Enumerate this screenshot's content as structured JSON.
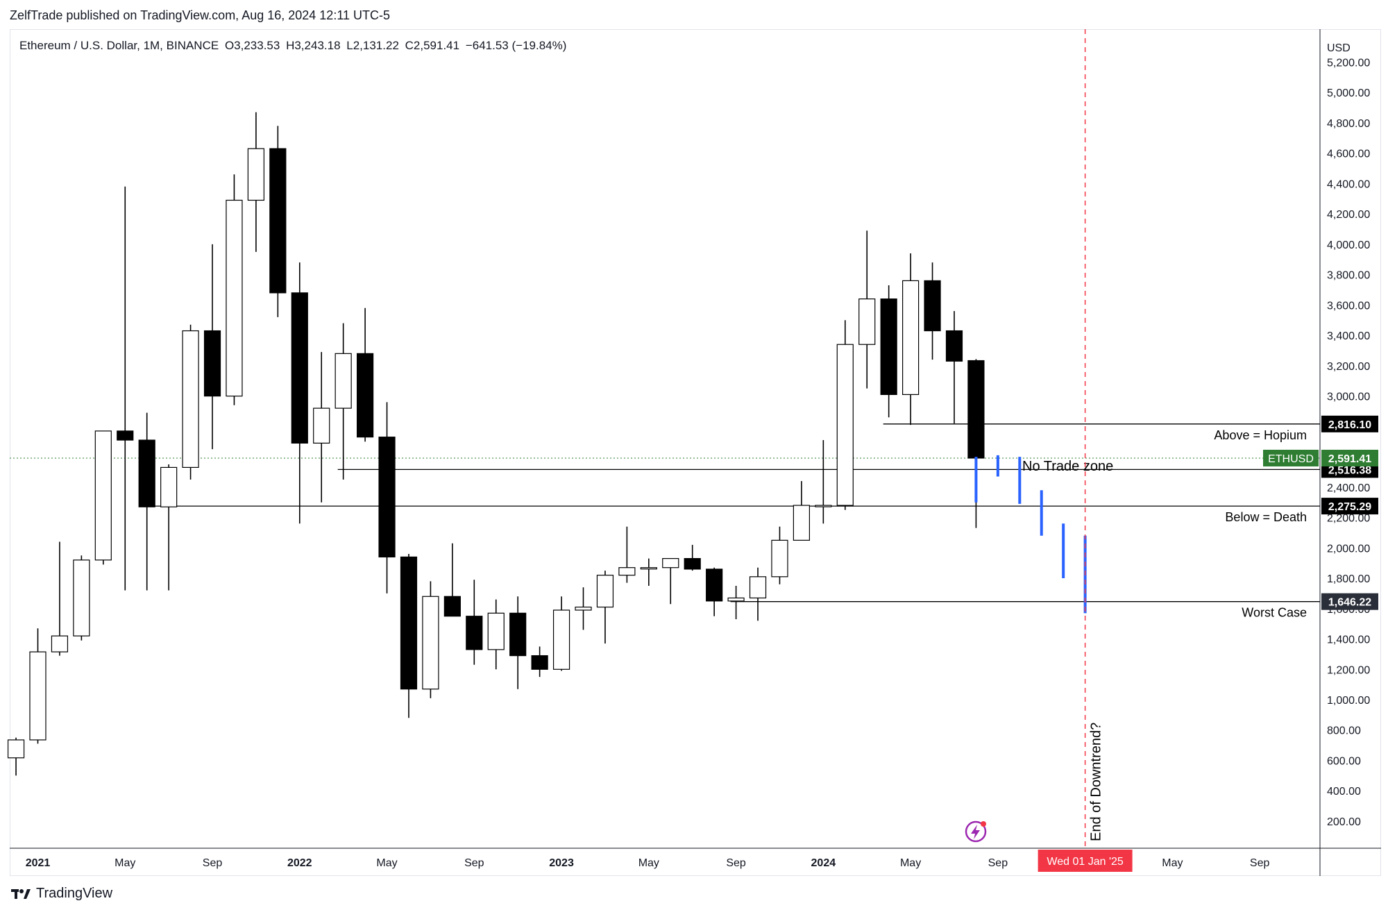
{
  "header": {
    "publisher_line": "ZelfTrade published on TradingView.com, Aug 16, 2024 12:11 UTC-5",
    "symbol": "Ethereum / U.S. Dollar, 1M, BINANCE",
    "open": "O3,233.53",
    "high": "H3,243.18",
    "low": "L2,131.22",
    "close": "C2,591.41",
    "change": "−641.53 (−19.84%)"
  },
  "footer": {
    "brand": "TradingView"
  },
  "colors": {
    "bull_fill": "#ffffff",
    "bear_fill": "#000000",
    "candle_stroke": "#000000",
    "last_price_green": "#2e7d32",
    "forecast_blue": "#2962ff",
    "cursor_red": "#f23645",
    "label_dark": "#000000",
    "label_gray": "#2a2e39"
  },
  "icons": {
    "replay": "lightning-bolt-icon",
    "logo": "tradingview-logo-icon"
  },
  "chart_data": {
    "type": "candlestick",
    "title": "Ethereum / U.S. Dollar, 1M, BINANCE",
    "currency": "USD",
    "ylim": [
      100,
      5400
    ],
    "y_ticks": [
      200,
      400,
      600,
      800,
      1000,
      1200,
      1400,
      1600,
      1800,
      2000,
      2200,
      2400,
      2600,
      2800,
      3000,
      3200,
      3400,
      3600,
      3800,
      4000,
      4200,
      4400,
      4600,
      4800,
      5000,
      5200
    ],
    "y_tick_labels": [
      "200.00",
      "400.00",
      "600.00",
      "800.00",
      "1,000.00",
      "1,200.00",
      "1,400.00",
      "1,600.00",
      "1,800.00",
      "2,000.00",
      "2,200.00",
      "2,400.00",
      "2,600.00",
      "2,800.00",
      "3,000.00",
      "3,200.00",
      "3,400.00",
      "3,600.00",
      "3,800.00",
      "4,000.00",
      "4,200.00",
      "4,400.00",
      "4,600.00",
      "4,800.00",
      "5,000.00",
      "5,200.00"
    ],
    "x_ticks": [
      {
        "label": "2021",
        "month": "2021-01",
        "bold": true
      },
      {
        "label": "May",
        "month": "2021-05"
      },
      {
        "label": "Sep",
        "month": "2021-09"
      },
      {
        "label": "2022",
        "month": "2022-01",
        "bold": true
      },
      {
        "label": "May",
        "month": "2022-05"
      },
      {
        "label": "Sep",
        "month": "2022-09"
      },
      {
        "label": "2023",
        "month": "2023-01",
        "bold": true
      },
      {
        "label": "May",
        "month": "2023-05"
      },
      {
        "label": "Sep",
        "month": "2023-09"
      },
      {
        "label": "2024",
        "month": "2024-01",
        "bold": true
      },
      {
        "label": "May",
        "month": "2024-05"
      },
      {
        "label": "Sep",
        "month": "2024-09"
      },
      {
        "label": "May",
        "month": "2025-05"
      },
      {
        "label": "Sep",
        "month": "2025-09"
      }
    ],
    "candles": [
      {
        "month": "2020-12",
        "o": 617,
        "h": 750,
        "l": 500,
        "c": 735
      },
      {
        "month": "2021-01",
        "o": 735,
        "h": 1470,
        "l": 710,
        "c": 1315
      },
      {
        "month": "2021-02",
        "o": 1315,
        "h": 2040,
        "l": 1290,
        "c": 1420
      },
      {
        "month": "2021-03",
        "o": 1420,
        "h": 1950,
        "l": 1390,
        "c": 1920
      },
      {
        "month": "2021-04",
        "o": 1920,
        "h": 2770,
        "l": 1890,
        "c": 2770
      },
      {
        "month": "2021-05",
        "o": 2770,
        "h": 4380,
        "l": 1720,
        "c": 2710
      },
      {
        "month": "2021-06",
        "o": 2710,
        "h": 2890,
        "l": 1720,
        "c": 2270
      },
      {
        "month": "2021-07",
        "o": 2270,
        "h": 2550,
        "l": 1720,
        "c": 2530
      },
      {
        "month": "2021-08",
        "o": 2530,
        "h": 3470,
        "l": 2450,
        "c": 3430
      },
      {
        "month": "2021-09",
        "o": 3430,
        "h": 4000,
        "l": 2650,
        "c": 3000
      },
      {
        "month": "2021-10",
        "o": 3000,
        "h": 4460,
        "l": 2940,
        "c": 4290
      },
      {
        "month": "2021-11",
        "o": 4290,
        "h": 4870,
        "l": 3950,
        "c": 4630
      },
      {
        "month": "2021-12",
        "o": 4630,
        "h": 4780,
        "l": 3520,
        "c": 3680
      },
      {
        "month": "2022-01",
        "o": 3680,
        "h": 3880,
        "l": 2160,
        "c": 2690
      },
      {
        "month": "2022-02",
        "o": 2690,
        "h": 3290,
        "l": 2300,
        "c": 2920
      },
      {
        "month": "2022-03",
        "o": 2920,
        "h": 3480,
        "l": 2450,
        "c": 3280
      },
      {
        "month": "2022-04",
        "o": 3280,
        "h": 3580,
        "l": 2700,
        "c": 2730
      },
      {
        "month": "2022-05",
        "o": 2730,
        "h": 2960,
        "l": 1700,
        "c": 1940
      },
      {
        "month": "2022-06",
        "o": 1940,
        "h": 1960,
        "l": 880,
        "c": 1070
      },
      {
        "month": "2022-07",
        "o": 1070,
        "h": 1780,
        "l": 1010,
        "c": 1680
      },
      {
        "month": "2022-08",
        "o": 1680,
        "h": 2030,
        "l": 1550,
        "c": 1550
      },
      {
        "month": "2022-09",
        "o": 1550,
        "h": 1790,
        "l": 1230,
        "c": 1330
      },
      {
        "month": "2022-10",
        "o": 1330,
        "h": 1660,
        "l": 1200,
        "c": 1570
      },
      {
        "month": "2022-11",
        "o": 1570,
        "h": 1680,
        "l": 1070,
        "c": 1290
      },
      {
        "month": "2022-12",
        "o": 1290,
        "h": 1350,
        "l": 1150,
        "c": 1200
      },
      {
        "month": "2023-01",
        "o": 1200,
        "h": 1680,
        "l": 1190,
        "c": 1590
      },
      {
        "month": "2023-02",
        "o": 1590,
        "h": 1740,
        "l": 1460,
        "c": 1610
      },
      {
        "month": "2023-03",
        "o": 1610,
        "h": 1850,
        "l": 1370,
        "c": 1820
      },
      {
        "month": "2023-04",
        "o": 1820,
        "h": 2140,
        "l": 1770,
        "c": 1870
      },
      {
        "month": "2023-05",
        "o": 1870,
        "h": 1930,
        "l": 1750,
        "c": 1870
      },
      {
        "month": "2023-06",
        "o": 1870,
        "h": 1930,
        "l": 1630,
        "c": 1930
      },
      {
        "month": "2023-07",
        "o": 1930,
        "h": 2020,
        "l": 1850,
        "c": 1860
      },
      {
        "month": "2023-08",
        "o": 1860,
        "h": 1870,
        "l": 1550,
        "c": 1650
      },
      {
        "month": "2023-09",
        "o": 1650,
        "h": 1750,
        "l": 1530,
        "c": 1670
      },
      {
        "month": "2023-10",
        "o": 1670,
        "h": 1870,
        "l": 1520,
        "c": 1810
      },
      {
        "month": "2023-11",
        "o": 1810,
        "h": 2140,
        "l": 1760,
        "c": 2050
      },
      {
        "month": "2023-12",
        "o": 2050,
        "h": 2440,
        "l": 2050,
        "c": 2280
      },
      {
        "month": "2024-01",
        "o": 2280,
        "h": 2710,
        "l": 2160,
        "c": 2280
      },
      {
        "month": "2024-02",
        "o": 2280,
        "h": 3500,
        "l": 2250,
        "c": 3340
      },
      {
        "month": "2024-03",
        "o": 3340,
        "h": 4090,
        "l": 3050,
        "c": 3640
      },
      {
        "month": "2024-04",
        "o": 3640,
        "h": 3730,
        "l": 2860,
        "c": 3010
      },
      {
        "month": "2024-05",
        "o": 3010,
        "h": 3940,
        "l": 2810,
        "c": 3760
      },
      {
        "month": "2024-06",
        "o": 3760,
        "h": 3880,
        "l": 3240,
        "c": 3430
      },
      {
        "month": "2024-07",
        "o": 3430,
        "h": 3560,
        "l": 2820,
        "c": 3230
      },
      {
        "month": "2024-08",
        "o": 3233.53,
        "h": 3243.18,
        "l": 2131.22,
        "c": 2591.41
      }
    ],
    "horizontal_lines": [
      {
        "price": 2816.1,
        "label": "2,816.10",
        "start_month": "2024-04",
        "text": "Above = Hopium",
        "label_color": "#000000"
      },
      {
        "price": 2516.38,
        "label": "2,516.38",
        "start_month": "2022-03",
        "text": "",
        "label_color": "#000000"
      },
      {
        "price": 2275.29,
        "label": "2,275.29",
        "start_month": "2021-06",
        "text": "Below = Death",
        "label_color": "#000000"
      },
      {
        "price": 1646.22,
        "label": "1,646.22",
        "start_month": "2023-09",
        "text": "Worst Case",
        "label_color": "#2a2e39"
      }
    ],
    "last_price": {
      "price": 2591.41,
      "label": "2,591.41",
      "symbol": "ETHUSD"
    },
    "zone_text": "No Trade zone",
    "forecast_bars": [
      {
        "month": "2024-08",
        "high": 2600,
        "low": 2300
      },
      {
        "month": "2024-09",
        "high": 2610,
        "low": 2470
      },
      {
        "month": "2024-10",
        "high": 2600,
        "low": 2290
      },
      {
        "month": "2024-11",
        "high": 2380,
        "low": 2080
      },
      {
        "month": "2024-12",
        "high": 2160,
        "low": 1800
      },
      {
        "month": "2025-01",
        "high": 2080,
        "low": 1570
      }
    ],
    "vertical_marker": {
      "month": "2025-01",
      "label": "Wed 01 Jan '25",
      "text": "End of Downtrend?"
    },
    "axis_currency_label": "USD"
  }
}
